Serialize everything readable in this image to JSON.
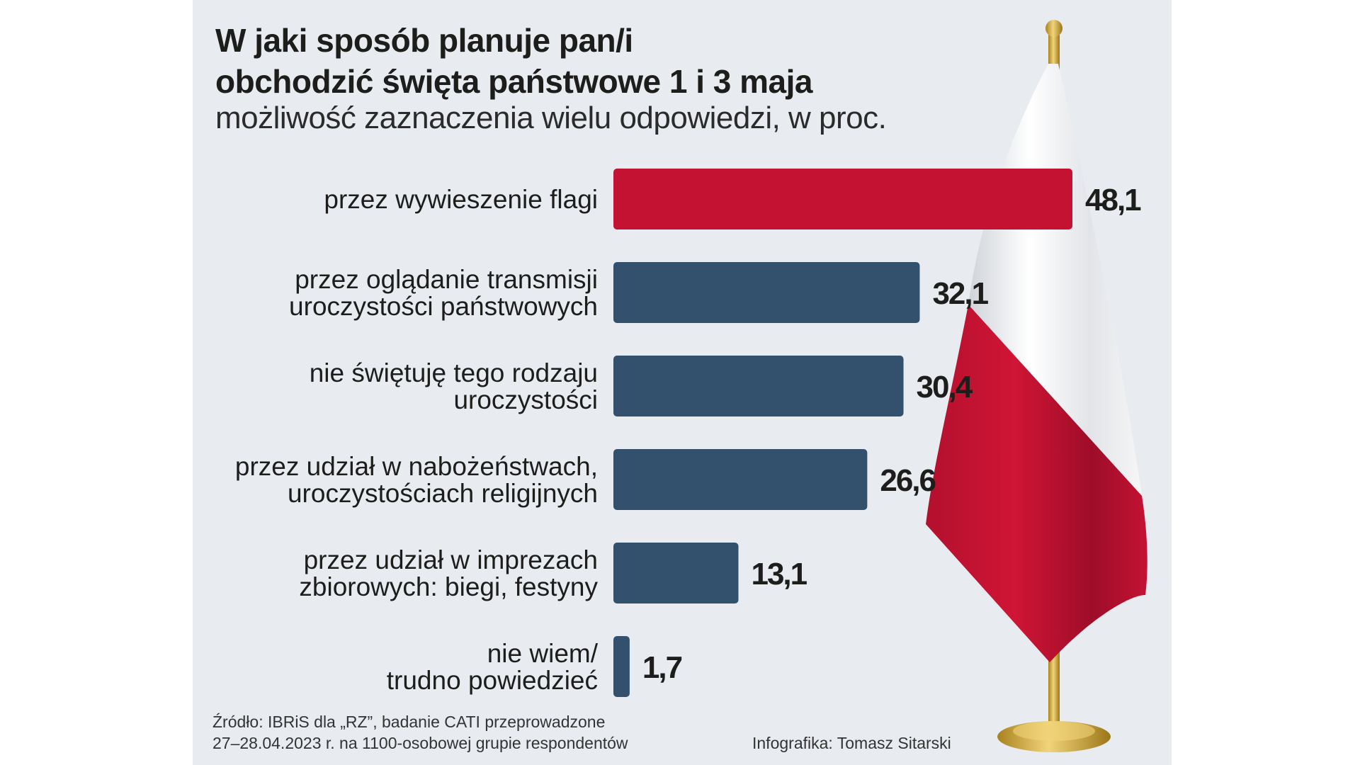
{
  "title_line1": "W jaki sposób planuje pan/i",
  "title_line2": "obchodzić święta państwowe 1 i 3 maja",
  "subtitle": "możliwość zaznaczenia wielu odpowiedzi, w proc.",
  "source_line1": "Źródło: IBRiS dla „RZ”, badanie CATI przeprowadzone",
  "source_line2": "27–28.04.2023 r. na 1100-osobowej grupie respondentów",
  "credit": "Infografika: Tomasz Sitarski",
  "colors": {
    "background": "#e8ecf1",
    "highlight": "#c41233",
    "bar": "#33516c",
    "flag_white": "#f4f4f4",
    "flag_red": "#c41233",
    "pole_gold": "#d4a93a"
  },
  "chart_data": {
    "type": "bar",
    "orientation": "horizontal",
    "categories": [
      [
        "przez wywieszenie flagi"
      ],
      [
        "przez oglądanie transmisji",
        "uroczystości państwowych"
      ],
      [
        "nie świętuję tego rodzaju",
        "uroczystości"
      ],
      [
        "przez udział w nabożeństwach,",
        "uroczystościach religijnych"
      ],
      [
        "przez udział w imprezach",
        "zbiorowych: biegi, festyny"
      ],
      [
        "nie wiem/",
        "trudno powiedzieć"
      ]
    ],
    "values": [
      48.1,
      32.1,
      30.4,
      26.6,
      13.1,
      1.7
    ],
    "value_labels": [
      "48,1",
      "32,1",
      "30,4",
      "26,6",
      "13,1",
      "1,7"
    ],
    "highlight_index": 0,
    "xlim": [
      0,
      48.1
    ],
    "grid": false,
    "legend": "none"
  }
}
